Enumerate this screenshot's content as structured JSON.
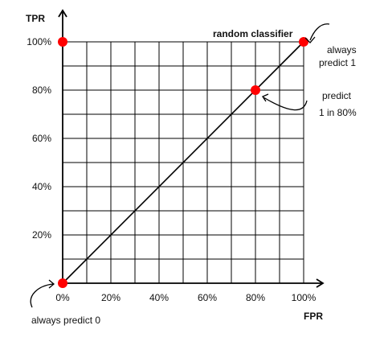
{
  "chart_data": {
    "type": "line",
    "x_label": "FPR",
    "y_label": "TPR",
    "xlim": [
      0,
      100
    ],
    "ylim": [
      0,
      100
    ],
    "x_ticks": [
      "0%",
      "20%",
      "40%",
      "60%",
      "80%",
      "100%"
    ],
    "y_ticks": [
      "20%",
      "40%",
      "60%",
      "80%",
      "100%"
    ],
    "x_tick_values": [
      0,
      20,
      40,
      60,
      80,
      100
    ],
    "y_tick_values": [
      20,
      40,
      60,
      80,
      100
    ],
    "grid_step": 10,
    "grid": true,
    "series": [
      {
        "name": "random classifier",
        "x": [
          0,
          100
        ],
        "y": [
          0,
          100
        ],
        "color": "#000000"
      }
    ],
    "points": [
      {
        "x": 0,
        "y": 0,
        "color": "#ff0000"
      },
      {
        "x": 0,
        "y": 100,
        "color": "#ff0000"
      },
      {
        "x": 80,
        "y": 80,
        "color": "#ff0000"
      },
      {
        "x": 100,
        "y": 100,
        "color": "#ff0000"
      }
    ],
    "annotations": [
      {
        "text": "always predict 0",
        "target": [
          0,
          0
        ]
      },
      {
        "lines": [
          "always",
          "predict 1"
        ],
        "target": [
          100,
          100
        ]
      },
      {
        "lines": [
          "predict",
          "1 in 80%"
        ],
        "target": [
          80,
          80
        ]
      }
    ]
  }
}
